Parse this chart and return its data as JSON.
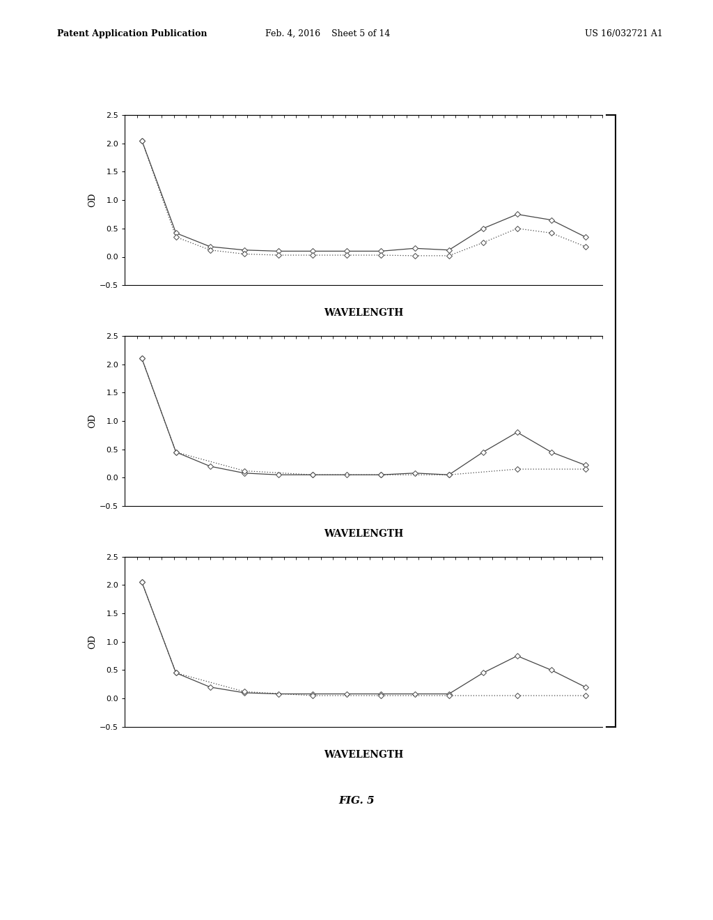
{
  "header_left": "Patent Application Publication",
  "header_mid": "Feb. 4, 2016    Sheet 5 of 14",
  "header_right": "US 16/032721 A1",
  "fig_label": "FIG. 5",
  "ylabel": "OD",
  "xlabel": "WAVELENGTH",
  "ylim": [
    -0.5,
    2.5
  ],
  "yticks": [
    -0.5,
    0,
    0.5,
    1,
    1.5,
    2,
    2.5
  ],
  "background_color": "#ffffff",
  "plots": [
    {
      "line1_x": [
        1,
        2,
        3,
        4,
        5,
        6,
        7,
        8,
        9,
        10,
        11,
        12,
        13,
        14
      ],
      "line1_y": [
        2.05,
        0.42,
        0.18,
        0.12,
        0.1,
        0.1,
        0.1,
        0.1,
        0.15,
        0.12,
        0.5,
        0.75,
        0.65,
        0.35
      ],
      "line2_x": [
        1,
        2,
        3,
        4,
        5,
        6,
        7,
        8,
        9,
        10,
        11,
        12,
        13,
        14
      ],
      "line2_y": [
        2.05,
        0.35,
        0.12,
        0.05,
        0.03,
        0.03,
        0.03,
        0.03,
        0.02,
        0.02,
        0.25,
        0.5,
        0.42,
        0.18
      ]
    },
    {
      "line1_x": [
        1,
        2,
        3,
        4,
        5,
        6,
        7,
        8,
        9,
        10,
        11,
        12,
        13,
        14
      ],
      "line1_y": [
        2.1,
        0.45,
        0.2,
        0.08,
        0.05,
        0.05,
        0.05,
        0.05,
        0.08,
        0.05,
        0.45,
        0.8,
        0.45,
        0.22
      ],
      "line2_x": [
        1,
        2,
        4,
        6,
        8,
        10,
        12,
        14
      ],
      "line2_y": [
        2.1,
        0.45,
        0.12,
        0.05,
        0.05,
        0.05,
        0.15,
        0.15
      ]
    },
    {
      "line1_x": [
        1,
        2,
        3,
        4,
        5,
        6,
        7,
        8,
        9,
        10,
        11,
        12,
        13,
        14
      ],
      "line1_y": [
        2.05,
        0.45,
        0.2,
        0.1,
        0.08,
        0.08,
        0.08,
        0.08,
        0.08,
        0.08,
        0.45,
        0.75,
        0.5,
        0.2
      ],
      "line2_x": [
        1,
        2,
        4,
        6,
        8,
        10,
        12,
        14
      ],
      "line2_y": [
        2.05,
        0.45,
        0.12,
        0.05,
        0.05,
        0.05,
        0.05,
        0.05
      ]
    }
  ],
  "line_color": "#444444",
  "marker_size": 4,
  "font_size_header": 9,
  "font_size_axis_label": 9,
  "font_size_tick": 8,
  "font_size_fig_label": 11
}
